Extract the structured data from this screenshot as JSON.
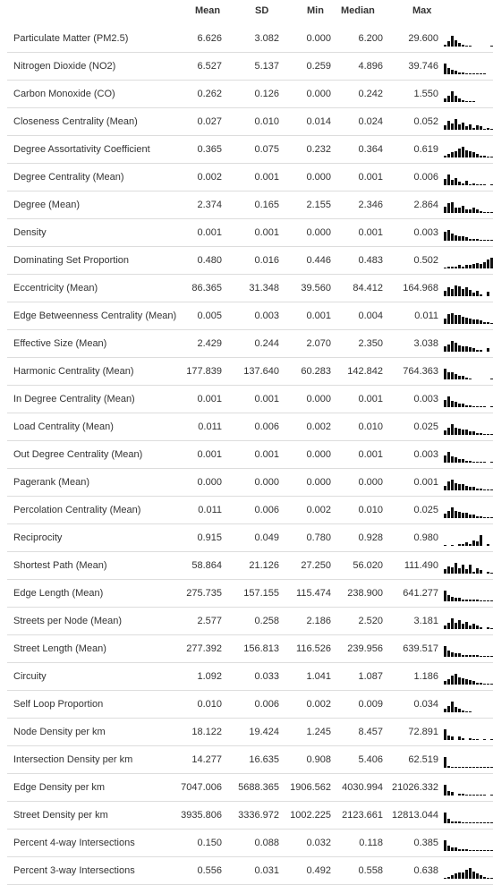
{
  "columns": {
    "mean": "Mean",
    "sd": "SD",
    "min": "Min",
    "median": "Median",
    "max": "Max"
  },
  "rows": [
    {
      "label": "Particulate Matter (PM2.5)",
      "mean": "6.626",
      "sd": "3.082",
      "min": "0.000",
      "median": "6.200",
      "max": "29.600",
      "hist": [
        0.2,
        0.5,
        1,
        0.6,
        0.3,
        0.2,
        0.1,
        0.1,
        0,
        0,
        0,
        0,
        0,
        0.05
      ]
    },
    {
      "label": "Nitrogen Dioxide (NO2)",
      "mean": "6.527",
      "sd": "5.137",
      "min": "0.259",
      "median": "4.896",
      "max": "39.746",
      "hist": [
        1,
        0.6,
        0.45,
        0.3,
        0.2,
        0.15,
        0.1,
        0.1,
        0.05,
        0.05,
        0.05,
        0.05,
        0,
        0
      ]
    },
    {
      "label": "Carbon Monoxide (CO)",
      "mean": "0.262",
      "sd": "0.126",
      "min": "0.000",
      "median": "0.242",
      "max": "1.550",
      "hist": [
        0.3,
        0.6,
        1,
        0.6,
        0.3,
        0.2,
        0.1,
        0.1,
        0.05,
        0,
        0,
        0,
        0,
        0
      ]
    },
    {
      "label": "Closeness Centrality (Mean)",
      "mean": "0.027",
      "sd": "0.010",
      "min": "0.014",
      "median": "0.024",
      "max": "0.052",
      "hist": [
        0.4,
        0.8,
        0.6,
        1,
        0.5,
        0.7,
        0.3,
        0.5,
        0.2,
        0.4,
        0.3,
        0.1,
        0.2,
        0.1
      ]
    },
    {
      "label": "Degree Assortativity Coefficient",
      "mean": "0.365",
      "sd": "0.075",
      "min": "0.232",
      "median": "0.364",
      "max": "0.619",
      "hist": [
        0.2,
        0.3,
        0.5,
        0.6,
        0.8,
        1,
        0.7,
        0.6,
        0.5,
        0.3,
        0.2,
        0.15,
        0.1,
        0.05
      ]
    },
    {
      "label": "Degree Centrality (Mean)",
      "mean": "0.002",
      "sd": "0.001",
      "min": "0.000",
      "median": "0.001",
      "max": "0.006",
      "hist": [
        0.6,
        1,
        0.5,
        0.7,
        0.3,
        0.2,
        0.4,
        0.1,
        0.2,
        0.1,
        0.1,
        0.05,
        0,
        0.05
      ]
    },
    {
      "label": "Degree (Mean)",
      "mean": "2.374",
      "sd": "0.165",
      "min": "2.155",
      "median": "2.346",
      "max": "2.864",
      "hist": [
        0.6,
        0.9,
        1,
        0.5,
        0.5,
        0.7,
        0.3,
        0.3,
        0.5,
        0.3,
        0.2,
        0.1,
        0.1,
        0.1
      ]
    },
    {
      "label": "Density",
      "mean": "0.001",
      "sd": "0.001",
      "min": "0.000",
      "median": "0.001",
      "max": "0.003",
      "hist": [
        0.8,
        1,
        0.7,
        0.5,
        0.4,
        0.4,
        0.3,
        0.2,
        0.2,
        0.15,
        0.1,
        0.05,
        0.05,
        0.05
      ]
    },
    {
      "label": "Dominating Set Proportion",
      "mean": "0.480",
      "sd": "0.016",
      "min": "0.446",
      "median": "0.483",
      "max": "0.502",
      "hist": [
        0.1,
        0.2,
        0.2,
        0.2,
        0.3,
        0.2,
        0.3,
        0.3,
        0.4,
        0.5,
        0.4,
        0.6,
        0.8,
        1
      ]
    },
    {
      "label": "Eccentricity (Mean)",
      "mean": "86.365",
      "sd": "31.348",
      "min": "39.560",
      "median": "84.412",
      "max": "164.968",
      "hist": [
        0.5,
        0.8,
        0.7,
        1,
        0.9,
        0.7,
        0.8,
        0.6,
        0.3,
        0.5,
        0.2,
        0,
        0.4,
        0
      ]
    },
    {
      "label": "Edge Betweenness Centrality (Mean)",
      "mean": "0.005",
      "sd": "0.003",
      "min": "0.001",
      "median": "0.004",
      "max": "0.011",
      "hist": [
        0.5,
        0.9,
        1,
        0.8,
        0.8,
        0.7,
        0.6,
        0.5,
        0.4,
        0.4,
        0.3,
        0.2,
        0.2,
        0.1
      ]
    },
    {
      "label": "Effective Size (Mean)",
      "mean": "2.429",
      "sd": "0.244",
      "min": "2.070",
      "median": "2.350",
      "max": "3.038",
      "hist": [
        0.5,
        0.7,
        1,
        0.8,
        0.6,
        0.5,
        0.5,
        0.4,
        0.3,
        0.2,
        0.2,
        0,
        0.3,
        0
      ]
    },
    {
      "label": "Harmonic Centrality (Mean)",
      "mean": "177.839",
      "sd": "137.640",
      "min": "60.283",
      "median": "142.842",
      "max": "764.363",
      "hist": [
        1,
        0.7,
        0.7,
        0.5,
        0.3,
        0.3,
        0.2,
        0.1,
        0,
        0,
        0,
        0,
        0,
        0.1
      ]
    },
    {
      "label": "In Degree Centrality (Mean)",
      "mean": "0.001",
      "sd": "0.001",
      "min": "0.000",
      "median": "0.001",
      "max": "0.003",
      "hist": [
        0.7,
        1,
        0.6,
        0.5,
        0.3,
        0.3,
        0.2,
        0.2,
        0.1,
        0.1,
        0.1,
        0.05,
        0,
        0.05
      ]
    },
    {
      "label": "Load Centrality (Mean)",
      "mean": "0.011",
      "sd": "0.006",
      "min": "0.002",
      "median": "0.010",
      "max": "0.025",
      "hist": [
        0.4,
        0.7,
        1,
        0.7,
        0.6,
        0.5,
        0.5,
        0.3,
        0.3,
        0.2,
        0.2,
        0.1,
        0.1,
        0.05
      ]
    },
    {
      "label": "Out Degree Centrality (Mean)",
      "mean": "0.001",
      "sd": "0.001",
      "min": "0.000",
      "median": "0.001",
      "max": "0.003",
      "hist": [
        0.7,
        1,
        0.6,
        0.5,
        0.3,
        0.3,
        0.2,
        0.2,
        0.1,
        0.1,
        0.1,
        0.05,
        0,
        0.05
      ]
    },
    {
      "label": "Pagerank (Mean)",
      "mean": "0.000",
      "sd": "0.000",
      "min": "0.000",
      "median": "0.000",
      "max": "0.001",
      "hist": [
        0.4,
        0.8,
        1,
        0.7,
        0.6,
        0.6,
        0.4,
        0.3,
        0.3,
        0.2,
        0.2,
        0.1,
        0.1,
        0.05
      ]
    },
    {
      "label": "Percolation Centrality (Mean)",
      "mean": "0.011",
      "sd": "0.006",
      "min": "0.002",
      "median": "0.010",
      "max": "0.025",
      "hist": [
        0.4,
        0.7,
        1,
        0.7,
        0.6,
        0.5,
        0.5,
        0.3,
        0.3,
        0.2,
        0.2,
        0.1,
        0.1,
        0.05
      ]
    },
    {
      "label": "Reciprocity",
      "mean": "0.915",
      "sd": "0.049",
      "min": "0.780",
      "median": "0.928",
      "max": "0.980",
      "hist": [
        0.1,
        0,
        0.1,
        0,
        0.2,
        0.2,
        0.3,
        0.2,
        0.5,
        0.4,
        1,
        0,
        0.2,
        0
      ]
    },
    {
      "label": "Shortest Path (Mean)",
      "mean": "58.864",
      "sd": "21.126",
      "min": "27.250",
      "median": "56.020",
      "max": "111.490",
      "hist": [
        0.4,
        0.7,
        0.6,
        1,
        0.5,
        0.8,
        0.4,
        0.8,
        0.2,
        0.5,
        0.3,
        0,
        0.2,
        0.1
      ]
    },
    {
      "label": "Edge Length (Mean)",
      "mean": "275.735",
      "sd": "157.155",
      "min": "115.474",
      "median": "238.900",
      "max": "641.277",
      "hist": [
        1,
        0.6,
        0.4,
        0.3,
        0.3,
        0.2,
        0.2,
        0.2,
        0.15,
        0.15,
        0.1,
        0.1,
        0.1,
        0.1
      ]
    },
    {
      "label": "Streets per Node (Mean)",
      "mean": "2.577",
      "sd": "0.258",
      "min": "2.186",
      "median": "2.520",
      "max": "3.181",
      "hist": [
        0.3,
        0.6,
        1,
        0.6,
        0.8,
        0.5,
        0.7,
        0.3,
        0.5,
        0.3,
        0.2,
        0,
        0.2,
        0.1
      ]
    },
    {
      "label": "Street Length (Mean)",
      "mean": "277.392",
      "sd": "156.813",
      "min": "116.526",
      "median": "239.956",
      "max": "639.517",
      "hist": [
        1,
        0.6,
        0.4,
        0.3,
        0.3,
        0.2,
        0.2,
        0.2,
        0.15,
        0.15,
        0.1,
        0.1,
        0.1,
        0.1
      ]
    },
    {
      "label": "Circuity",
      "mean": "1.092",
      "sd": "0.033",
      "min": "1.041",
      "median": "1.087",
      "max": "1.186",
      "hist": [
        0.3,
        0.5,
        0.8,
        1,
        0.7,
        0.6,
        0.5,
        0.4,
        0.3,
        0.2,
        0.2,
        0.1,
        0.1,
        0.05
      ]
    },
    {
      "label": "Self Loop Proportion",
      "mean": "0.010",
      "sd": "0.006",
      "min": "0.002",
      "median": "0.009",
      "max": "0.034",
      "hist": [
        0.3,
        0.6,
        1,
        0.5,
        0.3,
        0.2,
        0.1,
        0.1,
        0,
        0,
        0,
        0,
        0,
        0
      ]
    },
    {
      "label": "Node Density per km",
      "mean": "18.122",
      "sd": "19.424",
      "min": "1.245",
      "median": "8.457",
      "max": "72.891",
      "hist": [
        1,
        0.4,
        0.3,
        0,
        0.3,
        0.2,
        0,
        0.15,
        0.1,
        0.1,
        0,
        0.1,
        0,
        0.05
      ]
    },
    {
      "label": "Intersection Density per km",
      "mean": "14.277",
      "sd": "16.635",
      "min": "0.908",
      "median": "5.406",
      "max": "62.519",
      "hist": [
        1,
        0.15,
        0.1,
        0.1,
        0.1,
        0.1,
        0.1,
        0.1,
        0.1,
        0.1,
        0.1,
        0.05,
        0.05,
        0.05
      ]
    },
    {
      "label": "Edge Density per km",
      "mean": "7047.006",
      "sd": "5688.365",
      "min": "1906.562",
      "median": "4030.994",
      "max": "21026.332",
      "hist": [
        1,
        0.4,
        0.3,
        0,
        0.2,
        0.2,
        0.1,
        0.1,
        0.1,
        0.1,
        0.1,
        0.1,
        0,
        0.1
      ]
    },
    {
      "label": "Street Density per km",
      "mean": "3935.806",
      "sd": "3336.972",
      "min": "1002.225",
      "median": "2123.661",
      "max": "12813.044",
      "hist": [
        1,
        0.4,
        0.2,
        0.2,
        0.2,
        0.1,
        0.1,
        0.1,
        0.1,
        0.1,
        0.1,
        0.1,
        0.1,
        0.1
      ]
    },
    {
      "label": "Percent 4-way Intersections",
      "mean": "0.150",
      "sd": "0.088",
      "min": "0.032",
      "median": "0.118",
      "max": "0.385",
      "hist": [
        1,
        0.5,
        0.3,
        0.3,
        0.2,
        0.2,
        0.15,
        0.1,
        0.1,
        0.1,
        0.05,
        0.05,
        0.05,
        0.05
      ]
    },
    {
      "label": "Percent 3-way Intersections",
      "mean": "0.556",
      "sd": "0.031",
      "min": "0.492",
      "median": "0.558",
      "max": "0.638",
      "hist": [
        0.1,
        0.2,
        0.3,
        0.5,
        0.6,
        0.6,
        0.8,
        1,
        0.7,
        0.5,
        0.3,
        0.2,
        0.1,
        0.05
      ]
    }
  ]
}
